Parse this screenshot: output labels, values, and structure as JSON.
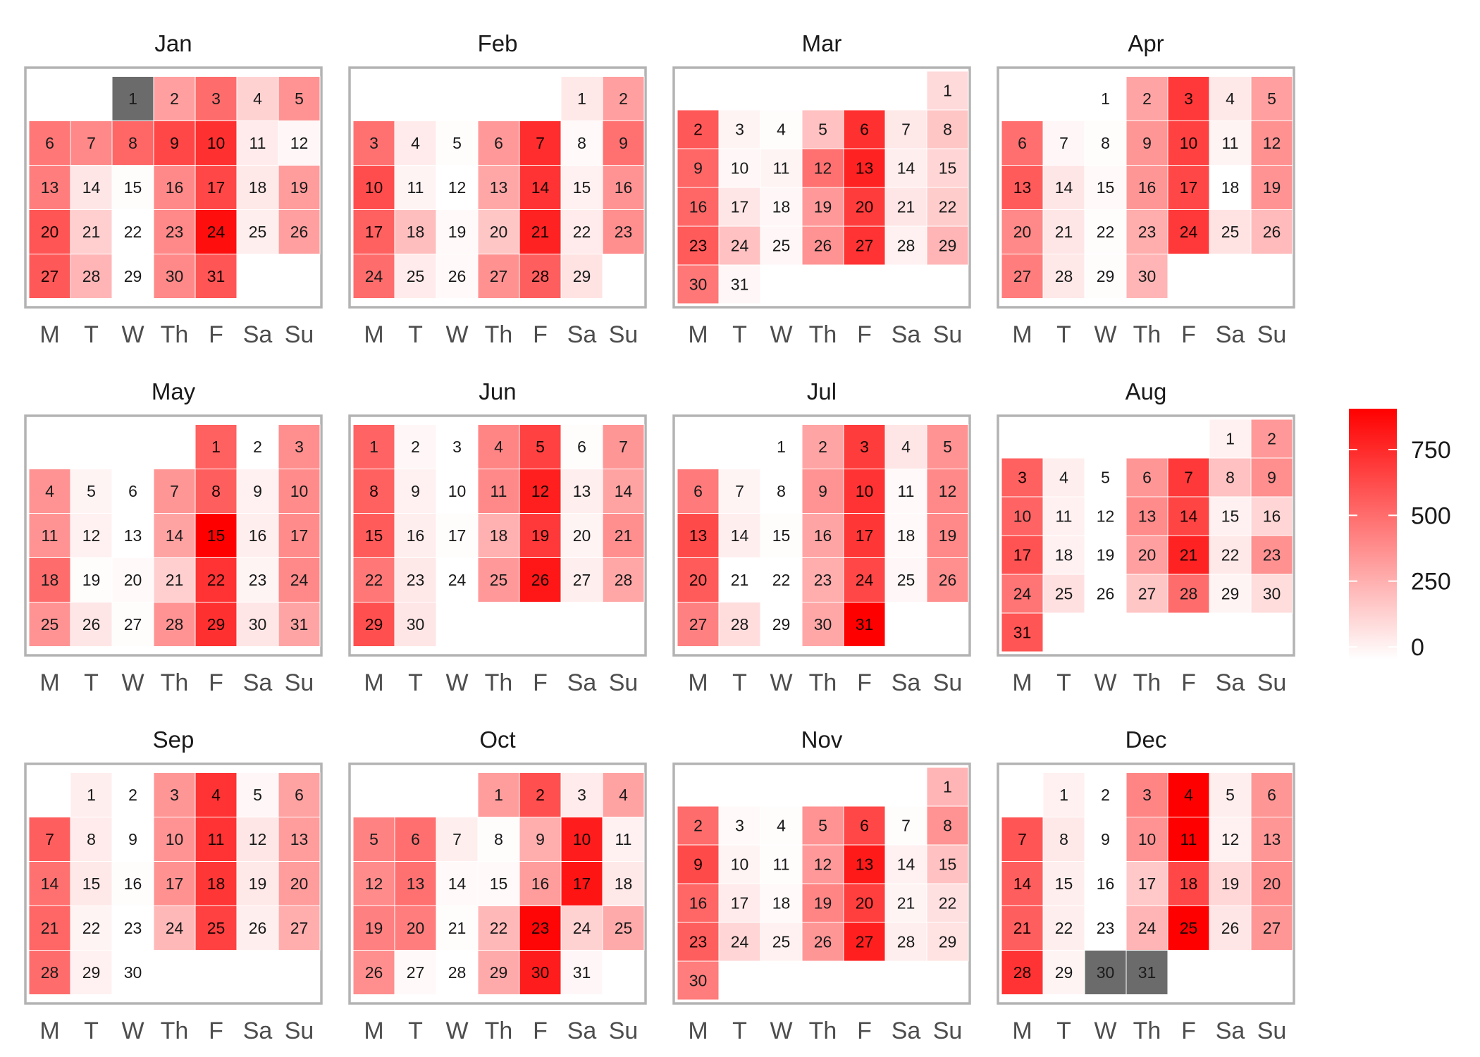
{
  "chart_data": {
    "type": "heatmap",
    "weekdays": [
      "M",
      "T",
      "W",
      "Th",
      "F",
      "Sa",
      "Su"
    ],
    "year_start_weekday": 2,
    "scale": {
      "min": 0,
      "max": 900,
      "low_color": "#ffffff",
      "high_color": "#ff0000",
      "na_color": "#6b6b6b",
      "ticks": [
        0,
        250,
        500,
        750
      ]
    },
    "months": [
      {
        "name": "Jan",
        "values": [
          null,
          340,
          520,
          160,
          380,
          480,
          420,
          540,
          650,
          730,
          70,
          30,
          460,
          90,
          10,
          420,
          650,
          80,
          350,
          600,
          170,
          0,
          420,
          850,
          60,
          340,
          590,
          260,
          0,
          420,
          600
        ]
      },
      {
        "name": "Feb",
        "values": [
          80,
          340,
          500,
          70,
          10,
          360,
          740,
          20,
          500,
          630,
          40,
          0,
          310,
          720,
          50,
          380,
          560,
          230,
          20,
          200,
          780,
          70,
          400,
          520,
          70,
          20,
          390,
          570,
          100
        ]
      },
      {
        "name": "Mar",
        "values": [
          130,
          590,
          40,
          10,
          220,
          730,
          80,
          200,
          540,
          30,
          40,
          500,
          780,
          60,
          150,
          540,
          90,
          30,
          360,
          690,
          90,
          180,
          580,
          220,
          30,
          380,
          720,
          50,
          260,
          480,
          30
        ]
      },
      {
        "name": "Apr",
        "values": [
          0,
          320,
          700,
          80,
          340,
          510,
          30,
          10,
          370,
          670,
          40,
          390,
          580,
          90,
          20,
          370,
          650,
          0,
          380,
          420,
          90,
          10,
          290,
          700,
          100,
          240,
          460,
          80,
          10,
          260
        ]
      },
      {
        "name": "May",
        "values": [
          560,
          0,
          400,
          380,
          40,
          0,
          370,
          570,
          50,
          410,
          380,
          50,
          0,
          330,
          900,
          60,
          410,
          520,
          10,
          20,
          170,
          720,
          40,
          420,
          380,
          90,
          10,
          380,
          730,
          90,
          320
        ]
      },
      {
        "name": "Jun",
        "values": [
          550,
          30,
          0,
          430,
          670,
          10,
          370,
          560,
          50,
          0,
          420,
          790,
          60,
          330,
          580,
          60,
          10,
          280,
          700,
          40,
          400,
          480,
          80,
          0,
          360,
          820,
          60,
          310,
          620,
          90
        ]
      },
      {
        "name": "Jul",
        "values": [
          0,
          320,
          690,
          90,
          380,
          470,
          40,
          0,
          380,
          720,
          20,
          420,
          640,
          60,
          10,
          320,
          710,
          20,
          420,
          580,
          0,
          0,
          290,
          650,
          30,
          400,
          450,
          120,
          0,
          310,
          970
        ]
      },
      {
        "name": "Aug",
        "values": [
          50,
          360,
          560,
          60,
          0,
          370,
          700,
          220,
          400,
          550,
          50,
          0,
          410,
          660,
          50,
          150,
          610,
          50,
          0,
          340,
          780,
          80,
          390,
          490,
          110,
          0,
          200,
          520,
          40,
          120,
          600
        ]
      },
      {
        "name": "Sep",
        "values": [
          60,
          0,
          370,
          720,
          30,
          330,
          570,
          70,
          0,
          380,
          720,
          90,
          350,
          500,
          80,
          10,
          390,
          710,
          80,
          350,
          540,
          40,
          0,
          250,
          670,
          60,
          290,
          520,
          50,
          0
        ]
      },
      {
        "name": "Oct",
        "values": [
          350,
          620,
          70,
          330,
          440,
          510,
          60,
          10,
          290,
          800,
          50,
          410,
          500,
          20,
          20,
          350,
          830,
          80,
          450,
          460,
          10,
          250,
          880,
          160,
          300,
          400,
          20,
          0,
          300,
          800,
          30
        ]
      },
      {
        "name": "Nov",
        "values": [
          260,
          520,
          20,
          10,
          380,
          650,
          10,
          380,
          640,
          40,
          10,
          360,
          810,
          50,
          220,
          540,
          70,
          20,
          430,
          680,
          40,
          110,
          570,
          150,
          50,
          370,
          790,
          60,
          100,
          460
        ]
      },
      {
        "name": "Dec",
        "values": [
          50,
          0,
          430,
          900,
          60,
          370,
          600,
          80,
          0,
          380,
          920,
          50,
          370,
          570,
          60,
          0,
          190,
          650,
          140,
          400,
          570,
          60,
          0,
          260,
          920,
          90,
          370,
          720,
          40,
          null,
          null
        ]
      }
    ]
  }
}
